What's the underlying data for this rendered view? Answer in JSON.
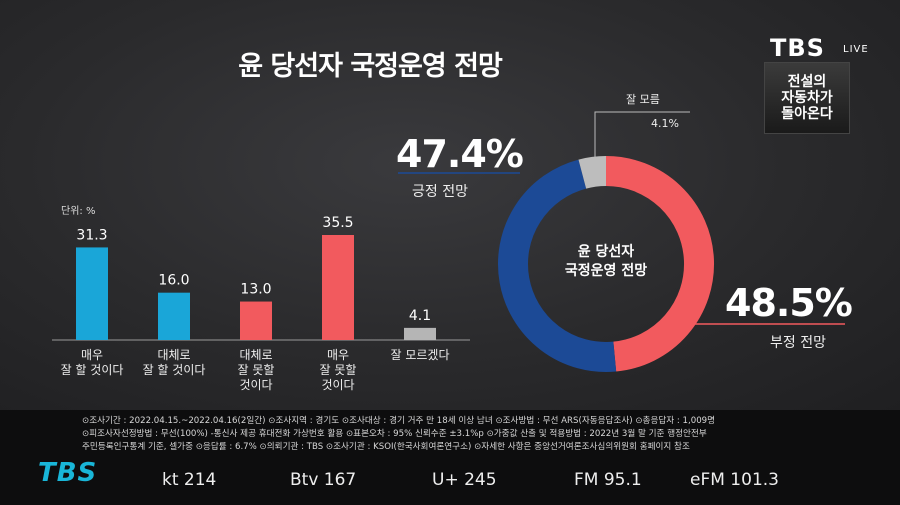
{
  "title": "윤 당선자 국정운영 전망",
  "brand": {
    "logo": "TBS",
    "live": "LIVE",
    "promo": "전설의\n자동차가\n돌아온다"
  },
  "unit_label": "단위: %",
  "donut": {
    "center_label": "윤 당선자\n국정운영 전망",
    "positive": {
      "value": "47.4%",
      "label": "긍정 전망"
    },
    "negative": {
      "value": "48.5%",
      "label": "부정 전망"
    },
    "unknown": {
      "label": "잘 모름",
      "value": "4.1%"
    }
  },
  "chart_data": [
    {
      "type": "bar",
      "categories": [
        "매우\n잘 할 것이다",
        "대체로\n잘 할 것이다",
        "대체로\n잘 못할\n것이다",
        "매우\n잘 못할\n것이다",
        "잘 모르겠다"
      ],
      "values": [
        31.3,
        16.0,
        13.0,
        35.5,
        4.1
      ],
      "value_labels": [
        "31.3",
        "16.0",
        "13.0",
        "35.5",
        "4.1"
      ],
      "colors": [
        "#1aa6d8",
        "#1aa6d8",
        "#f25a5e",
        "#f25a5e",
        "#b5b5b5"
      ]
    },
    {
      "type": "pie",
      "categories": [
        "긍정 전망",
        "부정 전망",
        "잘 모름"
      ],
      "values": [
        47.4,
        48.5,
        4.1
      ],
      "colors": [
        "#1c4a96",
        "#f25a5e",
        "#bdbdbd"
      ]
    }
  ],
  "footer": {
    "notes": [
      "⊙조사기간 : 2022.04.15.~2022.04.16(2일간)  ⊙조사지역 : 경기도  ⊙조사대상 : 경기 거주 만 18세 이상 남녀  ⊙조사방법 : 무선 ARS(자동응답조사)  ⊙총응답자 : 1,009명",
      "⊙피조사자선정방법 : 무선(100%) -통신사 제공 휴대전화 가상번호 활용  ⊙표본오차 : 95% 신뢰수준 ±3.1%p  ⊙가중값 산출 및 적용방법 : 2022년 3월 말 기준 행정안전부",
      "주민등록인구통계 기준, 셀가중  ⊙응답률 : 6.7%  ⊙의뢰기관 : TBS  ⊙조사기관 : KSOI(한국사회여론연구소)  ⊙자세한 사항은 중앙선거여론조사심의위원회 홈페이지 참조"
    ],
    "logo": "TBS",
    "channels": [
      "kt 214",
      "Btv 167",
      "U+ 245",
      "FM 95.1",
      "eFM 101.3"
    ]
  }
}
